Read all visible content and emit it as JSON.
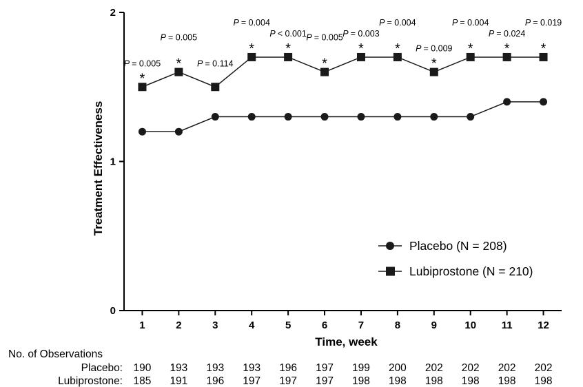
{
  "chart_data": {
    "type": "line",
    "xlabel": "Time, week",
    "ylabel": "Treatment Effectiveness",
    "x": [
      1,
      2,
      3,
      4,
      5,
      6,
      7,
      8,
      9,
      10,
      11,
      12
    ],
    "xlim": [
      0.5,
      12.5
    ],
    "ylim": [
      0,
      2
    ],
    "yticks": [
      0,
      1,
      2
    ],
    "grid": false,
    "legend_position": "bottom-right",
    "series": [
      {
        "name": "Placebo (N = 208)",
        "marker": "circle",
        "color": "#1a1a1a",
        "values": [
          1.2,
          1.2,
          1.3,
          1.3,
          1.3,
          1.3,
          1.3,
          1.3,
          1.3,
          1.3,
          1.4,
          1.4
        ]
      },
      {
        "name": "Lubiprostone (N = 210)",
        "marker": "square",
        "color": "#1a1a1a",
        "values": [
          1.5,
          1.6,
          1.5,
          1.7,
          1.7,
          1.6,
          1.7,
          1.7,
          1.6,
          1.7,
          1.7,
          1.7
        ]
      }
    ],
    "annotations": [
      {
        "x": 1,
        "p": "= 0.005",
        "star": true
      },
      {
        "x": 2,
        "p": "= 0.005",
        "star": true
      },
      {
        "x": 3,
        "p": "= 0.114",
        "star": false
      },
      {
        "x": 4,
        "p": "= 0.004",
        "star": true
      },
      {
        "x": 5,
        "p": "< 0.001",
        "star": true
      },
      {
        "x": 6,
        "p": "= 0.005",
        "star": true
      },
      {
        "x": 7,
        "p": "= 0.003",
        "star": true
      },
      {
        "x": 8,
        "p": "= 0.004",
        "star": true
      },
      {
        "x": 9,
        "p": "= 0.009",
        "star": true
      },
      {
        "x": 10,
        "p": "= 0.004",
        "star": true
      },
      {
        "x": 11,
        "p": "= 0.024",
        "star": true
      },
      {
        "x": 12,
        "p": "= 0.019",
        "star": true
      }
    ],
    "p_symbol": "P",
    "star_symbol": "*",
    "observations": {
      "title": "No. of Observations",
      "rows": [
        {
          "label": "Placebo:",
          "values": [
            190,
            193,
            193,
            193,
            196,
            197,
            199,
            200,
            202,
            202,
            202,
            202
          ]
        },
        {
          "label": "Lubiprostone:",
          "values": [
            185,
            191,
            196,
            197,
            197,
            197,
            198,
            198,
            198,
            198,
            198,
            198
          ]
        }
      ]
    }
  }
}
